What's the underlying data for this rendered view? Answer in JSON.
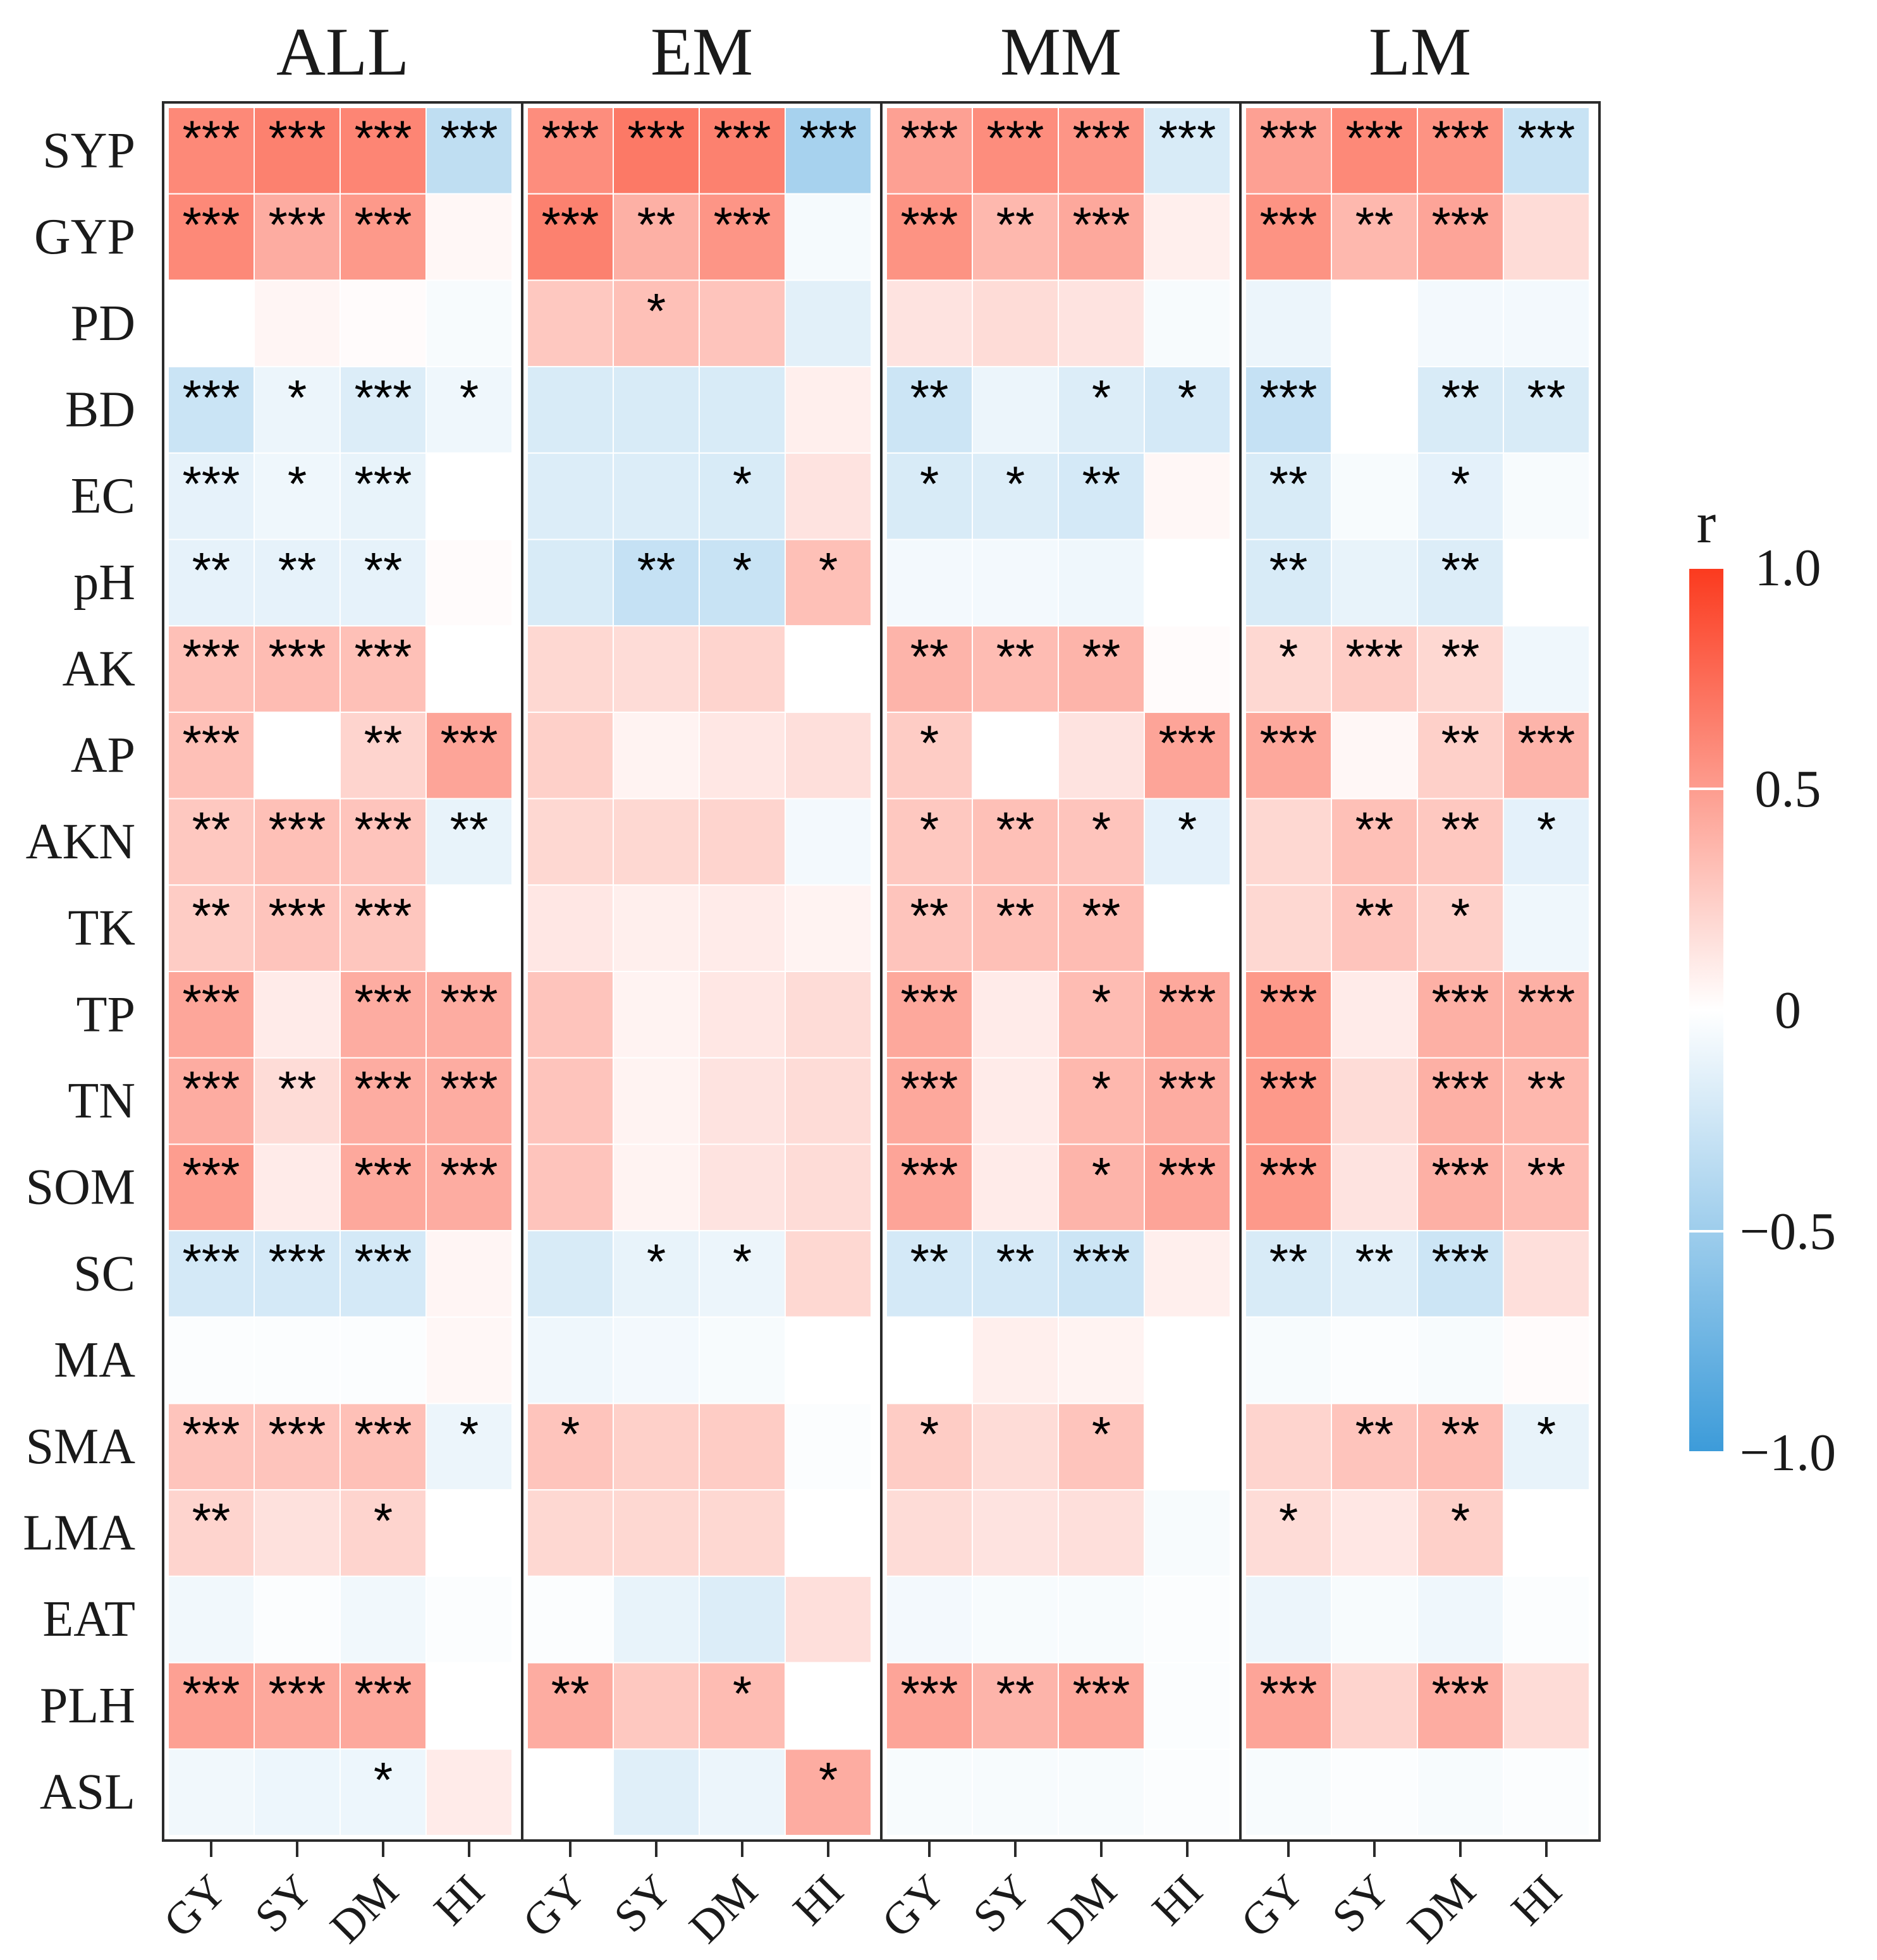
{
  "chart_data": {
    "type": "heatmap",
    "panels": [
      "ALL",
      "EM",
      "MM",
      "LM"
    ],
    "columns": [
      "GY",
      "SY",
      "DM",
      "HI"
    ],
    "rows": [
      "SYP",
      "GYP",
      "PD",
      "BD",
      "EC",
      "pH",
      "AK",
      "AP",
      "AKN",
      "TK",
      "TP",
      "TN",
      "SOM",
      "SC",
      "MA",
      "SMA",
      "LMA",
      "EAT",
      "PLH",
      "ASL"
    ],
    "values": {
      "ALL": [
        [
          0.6,
          0.64,
          0.62,
          -0.33
        ],
        [
          0.6,
          0.42,
          0.52,
          0.04
        ],
        [
          0.0,
          0.05,
          0.02,
          -0.04
        ],
        [
          -0.27,
          -0.1,
          -0.18,
          -0.08
        ],
        [
          -0.13,
          -0.08,
          -0.12,
          0.0
        ],
        [
          -0.13,
          -0.13,
          -0.13,
          0.02
        ],
        [
          0.32,
          0.34,
          0.32,
          0.0
        ],
        [
          0.32,
          0.0,
          0.22,
          0.46
        ],
        [
          0.28,
          0.32,
          0.3,
          -0.12
        ],
        [
          0.26,
          0.3,
          0.29,
          0.0
        ],
        [
          0.45,
          0.1,
          0.42,
          0.42
        ],
        [
          0.42,
          0.18,
          0.42,
          0.42
        ],
        [
          0.5,
          0.1,
          0.44,
          0.42
        ],
        [
          -0.22,
          -0.22,
          -0.22,
          0.05
        ],
        [
          -0.02,
          -0.02,
          -0.02,
          0.04
        ],
        [
          0.3,
          0.3,
          0.32,
          -0.1
        ],
        [
          0.22,
          0.15,
          0.22,
          0.0
        ],
        [
          -0.07,
          -0.02,
          -0.07,
          -0.02
        ],
        [
          0.48,
          0.44,
          0.44,
          0.0
        ],
        [
          -0.07,
          -0.09,
          -0.09,
          0.1
        ]
      ],
      "EM": [
        [
          0.58,
          0.68,
          0.64,
          -0.45
        ],
        [
          0.64,
          0.4,
          0.54,
          -0.05
        ],
        [
          0.28,
          0.32,
          0.3,
          -0.15
        ],
        [
          -0.2,
          -0.2,
          -0.2,
          0.08
        ],
        [
          -0.18,
          -0.18,
          -0.2,
          0.14
        ],
        [
          -0.2,
          -0.3,
          -0.28,
          0.32
        ],
        [
          0.2,
          0.18,
          0.22,
          0.0
        ],
        [
          0.24,
          0.06,
          0.12,
          0.16
        ],
        [
          0.2,
          0.2,
          0.22,
          -0.06
        ],
        [
          0.12,
          0.08,
          0.1,
          0.06
        ],
        [
          0.3,
          0.06,
          0.12,
          0.18
        ],
        [
          0.3,
          0.06,
          0.14,
          0.18
        ],
        [
          0.3,
          0.06,
          0.14,
          0.18
        ],
        [
          -0.2,
          -0.12,
          -0.1,
          0.2
        ],
        [
          -0.08,
          -0.06,
          -0.04,
          0.0
        ],
        [
          0.3,
          0.24,
          0.26,
          -0.02
        ],
        [
          0.2,
          0.2,
          0.2,
          0.0
        ],
        [
          -0.02,
          -0.12,
          -0.18,
          0.16
        ],
        [
          0.42,
          0.28,
          0.34,
          0.0
        ],
        [
          0.0,
          -0.16,
          -0.1,
          0.42
        ]
      ],
      "MM": [
        [
          0.48,
          0.58,
          0.54,
          -0.2
        ],
        [
          0.55,
          0.36,
          0.44,
          0.08
        ],
        [
          0.14,
          0.18,
          0.14,
          -0.04
        ],
        [
          -0.26,
          -0.1,
          -0.18,
          -0.22
        ],
        [
          -0.2,
          -0.18,
          -0.22,
          0.04
        ],
        [
          -0.06,
          -0.06,
          -0.08,
          0.0
        ],
        [
          0.38,
          0.34,
          0.38,
          0.02
        ],
        [
          0.26,
          0.0,
          0.14,
          0.46
        ],
        [
          0.28,
          0.32,
          0.3,
          -0.14
        ],
        [
          0.3,
          0.32,
          0.34,
          0.0
        ],
        [
          0.44,
          0.1,
          0.34,
          0.44
        ],
        [
          0.44,
          0.1,
          0.36,
          0.42
        ],
        [
          0.46,
          0.1,
          0.38,
          0.46
        ],
        [
          -0.22,
          -0.22,
          -0.26,
          0.08
        ],
        [
          0.0,
          0.08,
          0.06,
          0.0
        ],
        [
          0.26,
          0.18,
          0.3,
          0.0
        ],
        [
          0.18,
          0.14,
          0.16,
          -0.04
        ],
        [
          -0.06,
          -0.04,
          -0.04,
          -0.02
        ],
        [
          0.46,
          0.38,
          0.44,
          -0.02
        ],
        [
          -0.04,
          -0.04,
          -0.04,
          -0.02
        ]
      ],
      "LM": [
        [
          0.48,
          0.6,
          0.55,
          -0.28
        ],
        [
          0.55,
          0.36,
          0.46,
          0.18
        ],
        [
          -0.1,
          0.0,
          -0.06,
          -0.06
        ],
        [
          -0.3,
          0.0,
          -0.2,
          -0.2
        ],
        [
          -0.2,
          -0.04,
          -0.14,
          -0.04
        ],
        [
          -0.2,
          -0.12,
          -0.18,
          0.0
        ],
        [
          0.2,
          0.26,
          0.2,
          -0.08
        ],
        [
          0.44,
          0.04,
          0.24,
          0.38
        ],
        [
          0.2,
          0.32,
          0.28,
          -0.14
        ],
        [
          0.2,
          0.3,
          0.24,
          -0.08
        ],
        [
          0.52,
          0.1,
          0.4,
          0.4
        ],
        [
          0.52,
          0.18,
          0.4,
          0.36
        ],
        [
          0.52,
          0.14,
          0.4,
          0.34
        ],
        [
          -0.2,
          -0.16,
          -0.26,
          0.16
        ],
        [
          -0.04,
          -0.02,
          -0.04,
          0.02
        ],
        [
          0.22,
          0.3,
          0.34,
          -0.12
        ],
        [
          0.18,
          0.12,
          0.24,
          0.0
        ],
        [
          -0.1,
          -0.04,
          -0.08,
          -0.02
        ],
        [
          0.46,
          0.22,
          0.42,
          0.18
        ],
        [
          -0.04,
          -0.02,
          -0.04,
          -0.02
        ]
      ]
    },
    "significance": {
      "ALL": [
        [
          "***",
          "***",
          "***",
          "***"
        ],
        [
          "***",
          "***",
          "***",
          ""
        ],
        [
          "",
          "",
          "",
          ""
        ],
        [
          "***",
          "*",
          "***",
          "*"
        ],
        [
          "***",
          "*",
          "***",
          ""
        ],
        [
          "**",
          "**",
          "**",
          ""
        ],
        [
          "***",
          "***",
          "***",
          ""
        ],
        [
          "***",
          "",
          "**",
          "***"
        ],
        [
          "**",
          "***",
          "***",
          "**"
        ],
        [
          "**",
          "***",
          "***",
          ""
        ],
        [
          "***",
          "",
          "***",
          "***"
        ],
        [
          "***",
          "**",
          "***",
          "***"
        ],
        [
          "***",
          "",
          "***",
          "***"
        ],
        [
          "***",
          "***",
          "***",
          ""
        ],
        [
          "",
          "",
          "",
          ""
        ],
        [
          "***",
          "***",
          "***",
          "*"
        ],
        [
          "**",
          "",
          "*",
          ""
        ],
        [
          "",
          "",
          "",
          ""
        ],
        [
          "***",
          "***",
          "***",
          ""
        ],
        [
          "",
          "",
          "*",
          ""
        ]
      ],
      "EM": [
        [
          "***",
          "***",
          "***",
          "***"
        ],
        [
          "***",
          "**",
          "***",
          ""
        ],
        [
          "",
          "*",
          "",
          ""
        ],
        [
          "",
          "",
          "",
          ""
        ],
        [
          "",
          "",
          "*",
          ""
        ],
        [
          "",
          "**",
          "*",
          "*"
        ],
        [
          "",
          "",
          "",
          ""
        ],
        [
          "",
          "",
          "",
          ""
        ],
        [
          "",
          "",
          "",
          ""
        ],
        [
          "",
          "",
          "",
          ""
        ],
        [
          "",
          "",
          "",
          ""
        ],
        [
          "",
          "",
          "",
          ""
        ],
        [
          "",
          "",
          "",
          ""
        ],
        [
          "",
          "*",
          "*",
          ""
        ],
        [
          "",
          "",
          "",
          ""
        ],
        [
          "*",
          "",
          "",
          ""
        ],
        [
          "",
          "",
          "",
          ""
        ],
        [
          "",
          "",
          "",
          ""
        ],
        [
          "**",
          "",
          "*",
          ""
        ],
        [
          "",
          "",
          "",
          "*"
        ]
      ],
      "MM": [
        [
          "***",
          "***",
          "***",
          "***"
        ],
        [
          "***",
          "**",
          "***",
          ""
        ],
        [
          "",
          "",
          "",
          ""
        ],
        [
          "**",
          "",
          "*",
          "*"
        ],
        [
          "*",
          "*",
          "**",
          ""
        ],
        [
          "",
          "",
          "",
          ""
        ],
        [
          "**",
          "**",
          "**",
          ""
        ],
        [
          "*",
          "",
          "",
          "***"
        ],
        [
          "*",
          "**",
          "*",
          "*"
        ],
        [
          "**",
          "**",
          "**",
          ""
        ],
        [
          "***",
          "",
          "*",
          "***"
        ],
        [
          "***",
          "",
          "*",
          "***"
        ],
        [
          "***",
          "",
          "*",
          "***"
        ],
        [
          "**",
          "**",
          "***",
          ""
        ],
        [
          "",
          "",
          "",
          ""
        ],
        [
          "*",
          "",
          "*",
          ""
        ],
        [
          "",
          "",
          "",
          ""
        ],
        [
          "",
          "",
          "",
          ""
        ],
        [
          "***",
          "**",
          "***",
          ""
        ],
        [
          "",
          "",
          "",
          ""
        ]
      ],
      "LM": [
        [
          "***",
          "***",
          "***",
          "***"
        ],
        [
          "***",
          "**",
          "***",
          ""
        ],
        [
          "",
          "",
          "",
          ""
        ],
        [
          "***",
          "",
          "**",
          "**"
        ],
        [
          "**",
          "",
          "*",
          ""
        ],
        [
          "**",
          "",
          "**",
          ""
        ],
        [
          "*",
          "***",
          "**",
          ""
        ],
        [
          "***",
          "",
          "**",
          "***"
        ],
        [
          "",
          "**",
          "**",
          "*"
        ],
        [
          "",
          "**",
          "*",
          ""
        ],
        [
          "***",
          "",
          "***",
          "***"
        ],
        [
          "***",
          "",
          "***",
          "**"
        ],
        [
          "***",
          "",
          "***",
          "**"
        ],
        [
          "**",
          "**",
          "***",
          ""
        ],
        [
          "",
          "",
          "",
          ""
        ],
        [
          "",
          "**",
          "**",
          "*"
        ],
        [
          "*",
          "",
          "*",
          ""
        ],
        [
          "",
          "",
          "",
          ""
        ],
        [
          "***",
          "",
          "***",
          ""
        ],
        [
          "",
          "",
          "",
          ""
        ]
      ]
    },
    "legend": {
      "title": "r",
      "ticks": [
        1.0,
        0.5,
        0,
        -0.5,
        -1.0
      ],
      "tick_labels": [
        "1.0",
        "0.5",
        "0",
        "−0.5",
        "−1.0"
      ],
      "range": [
        -1.0,
        1.0
      ],
      "colors": {
        "low": "#3c9bd9",
        "mid": "#ffffff",
        "high": "#fb3a1e"
      }
    }
  }
}
